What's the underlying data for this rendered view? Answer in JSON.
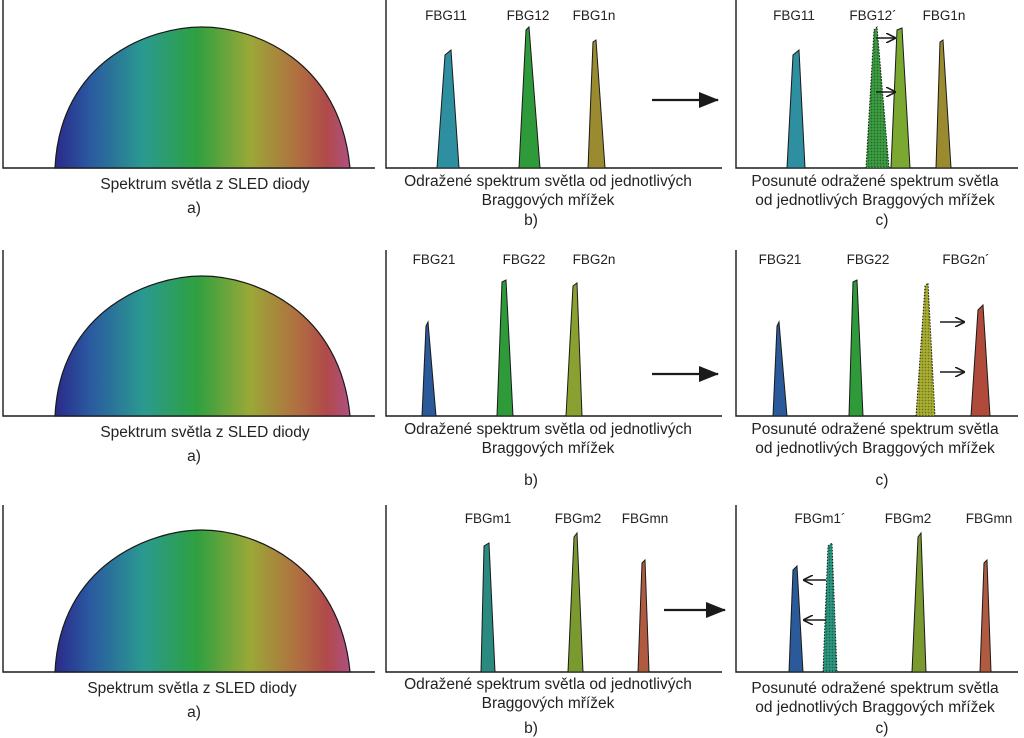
{
  "rows": [
    {
      "a": {
        "caption": "Spektrum světla z SLED diody",
        "letter": "a)"
      },
      "b": {
        "caption_line1": "Odražené spektrum světla od jednotlivých",
        "caption_line2": "Braggových mřížek",
        "letter": "b)",
        "peaks": [
          {
            "label": "FBG11",
            "color": "#2e8fa0"
          },
          {
            "label": "FBG12",
            "color": "#2f9a3a"
          },
          {
            "label": "FBG1n",
            "color": "#9a8a30"
          }
        ]
      },
      "c": {
        "caption_line1": "Posunuté odražené spektrum světla",
        "caption_line2": "od jednotlivých Braggových mřížek",
        "letter": "c)",
        "peaks": [
          {
            "label": "FBG11",
            "color": "#2e8fa0"
          },
          {
            "label": "FBG12´",
            "color": "#7aa830"
          },
          {
            "label": "FBG1n",
            "color": "#9a8a30"
          }
        ]
      }
    },
    {
      "a": {
        "caption": "Spektrum světla z SLED diody",
        "letter": "a)"
      },
      "b": {
        "caption_line1": "Odražené spektrum světla od jednotlivých",
        "caption_line2": "Braggových mřížek",
        "letter": "b)",
        "peaks": [
          {
            "label": "FBG21",
            "color": "#2a5a9a"
          },
          {
            "label": "FBG22",
            "color": "#2f9a3a"
          },
          {
            "label": "FBG2n",
            "color": "#8aa030"
          }
        ]
      },
      "c": {
        "caption_line1": "Posunuté odražené spektrum světla",
        "caption_line2": "od jednotlivých Braggových mřížek",
        "letter": "c)",
        "peaks": [
          {
            "label": "FBG21",
            "color": "#2a5a9a"
          },
          {
            "label": "FBG22",
            "color": "#2f9a3a"
          },
          {
            "label": "FBG2n´",
            "color": "#b04a3a"
          }
        ]
      }
    },
    {
      "a": {
        "caption": "Spektrum světla z SLED diody",
        "letter": "a)"
      },
      "b": {
        "caption_line1": "Odražené spektrum světla od jednotlivých",
        "caption_line2": "Braggových mřížek",
        "letter": "b)",
        "peaks": [
          {
            "label": "FBGm1",
            "color": "#2a8a80"
          },
          {
            "label": "FBGm2",
            "color": "#7a9a30"
          },
          {
            "label": "FBGmn",
            "color": "#b05a40"
          }
        ]
      },
      "c": {
        "caption_line1": "Posunuté odražené spektrum světla",
        "caption_line2": "od jednotlivých Braggových mřížek",
        "letter": "c)",
        "peaks": [
          {
            "label": "FBGm1´",
            "color": "#2a5a9a"
          },
          {
            "label": "FBGm2",
            "color": "#7a9a30"
          },
          {
            "label": "FBGmn",
            "color": "#b05a40"
          }
        ]
      }
    }
  ]
}
